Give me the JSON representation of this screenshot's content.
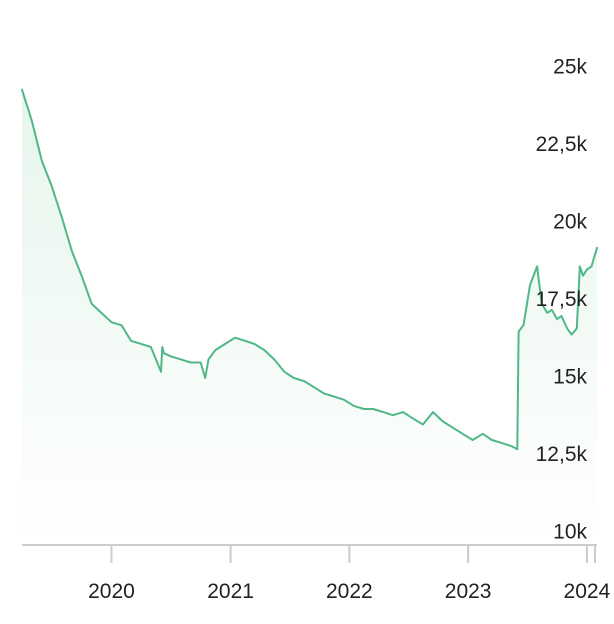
{
  "chart_data": {
    "type": "area",
    "title": "",
    "xlabel": "",
    "ylabel": "",
    "y_axis_side": "right",
    "grid": false,
    "ylim": [
      10000,
      25000
    ],
    "xlim": [
      "2019-04-01",
      "2024-02-01"
    ],
    "y_ticks": [
      {
        "value": 25000,
        "label": "25k"
      },
      {
        "value": 22500,
        "label": "22,5k"
      },
      {
        "value": 20000,
        "label": "20k"
      },
      {
        "value": 17500,
        "label": "17,5k"
      },
      {
        "value": 15000,
        "label": "15k"
      },
      {
        "value": 12500,
        "label": "12,5k"
      },
      {
        "value": 10000,
        "label": "10k"
      }
    ],
    "x_ticks": [
      {
        "value": "2020-01-01",
        "label": "2020"
      },
      {
        "value": "2021-01-01",
        "label": "2021"
      },
      {
        "value": "2022-01-01",
        "label": "2022"
      },
      {
        "value": "2023-01-01",
        "label": "2023"
      },
      {
        "value": "2024-01-01",
        "label": "2024"
      }
    ],
    "colors": {
      "line": "#4fb886",
      "fill": "#e6f5ec",
      "axis": "#cccccc",
      "text": "#222222"
    },
    "series": [
      {
        "x": [
          "2019-04-01",
          "2019-05-01",
          "2019-06-01",
          "2019-07-01",
          "2019-08-01",
          "2019-09-01",
          "2019-10-01",
          "2019-11-01",
          "2019-12-01",
          "2020-01-01",
          "2020-02-01",
          "2020-03-01",
          "2020-04-01",
          "2020-05-01",
          "2020-06-01",
          "2020-06-05",
          "2020-06-10",
          "2020-07-01",
          "2020-08-01",
          "2020-09-01",
          "2020-10-01",
          "2020-10-15",
          "2020-10-25",
          "2020-11-15",
          "2020-12-15",
          "2021-01-15",
          "2021-02-15",
          "2021-03-15",
          "2021-04-15",
          "2021-05-15",
          "2021-06-15",
          "2021-07-15",
          "2021-08-15",
          "2021-09-15",
          "2021-10-15",
          "2021-11-15",
          "2021-12-15",
          "2022-01-15",
          "2022-02-15",
          "2022-03-15",
          "2022-04-15",
          "2022-05-15",
          "2022-06-15",
          "2022-07-15",
          "2022-08-15",
          "2022-09-15",
          "2022-10-15",
          "2022-11-15",
          "2022-12-15",
          "2023-01-15",
          "2023-02-15",
          "2023-03-15",
          "2023-04-15",
          "2023-05-15",
          "2023-06-01",
          "2023-06-05",
          "2023-06-20",
          "2023-07-10",
          "2023-08-01",
          "2023-08-15",
          "2023-09-01",
          "2023-09-15",
          "2023-10-01",
          "2023-10-15",
          "2023-11-01",
          "2023-11-15",
          "2023-12-01",
          "2023-12-10",
          "2023-12-20",
          "2024-01-01",
          "2024-01-15",
          "2024-02-01"
        ],
        "values": [
          24300,
          23300,
          22000,
          21200,
          20200,
          19100,
          18300,
          17400,
          17100,
          16800,
          16700,
          16200,
          16100,
          16000,
          15200,
          16000,
          15800,
          15700,
          15600,
          15500,
          15500,
          15000,
          15600,
          15900,
          16100,
          16300,
          16200,
          16100,
          15900,
          15600,
          15200,
          15000,
          14900,
          14700,
          14500,
          14400,
          14300,
          14100,
          14000,
          14000,
          13900,
          13800,
          13900,
          13700,
          13500,
          13900,
          13600,
          13400,
          13200,
          13000,
          13200,
          13000,
          12900,
          12800,
          12700,
          16500,
          16700,
          18000,
          18600,
          17400,
          17100,
          17200,
          16900,
          17000,
          16600,
          16400,
          16600,
          18600,
          18300,
          18500,
          18600,
          19200
        ]
      }
    ]
  }
}
